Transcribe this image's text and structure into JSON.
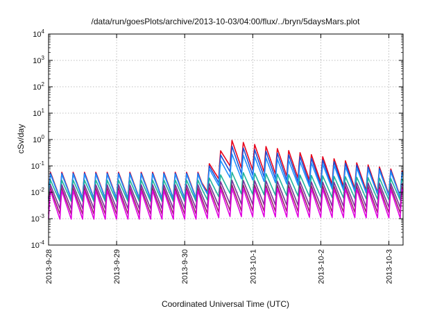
{
  "chart_data": {
    "type": "line",
    "title": "/data/run/goesPlots/archive/2013-10-03/04:00/flux/../bryn/5daysMars.plot",
    "xlabel": "Coordinated Universal Time (UTC)",
    "ylabel": "cSv/day",
    "y_scale": "log",
    "ylim": [
      0.0001,
      10000
    ],
    "y_ticks": [
      {
        "base": "10",
        "exp": "-4"
      },
      {
        "base": "10",
        "exp": "-3"
      },
      {
        "base": "10",
        "exp": "-2"
      },
      {
        "base": "10",
        "exp": "-1"
      },
      {
        "base": "10",
        "exp": "0"
      },
      {
        "base": "10",
        "exp": "1"
      },
      {
        "base": "10",
        "exp": "2"
      },
      {
        "base": "10",
        "exp": "3"
      },
      {
        "base": "10",
        "exp": "4"
      }
    ],
    "xlim": [
      "2013-09-28",
      "2013-10-03T05:00"
    ],
    "x_ticks": [
      "2013-9-28",
      "2013-9-29",
      "2013-9-30",
      "2013-10-1",
      "2013-10-2",
      "2013-10-3"
    ],
    "grid": true,
    "legend": "none",
    "series_colors": [
      "#e8001a",
      "#1a4fd6",
      "#1e90ff",
      "#1fb39a",
      "#7a2f9a",
      "#9a1f6a",
      "#e000e0"
    ],
    "series_profile": [
      {
        "color": "#e8001a",
        "pre_event_peak": 0.06,
        "event_peak": 1.0,
        "trough_ratio": 0.1
      },
      {
        "color": "#1a4fd6",
        "pre_event_peak": 0.055,
        "event_peak": 0.6,
        "trough_ratio": 0.1
      },
      {
        "color": "#1e90ff",
        "pre_event_peak": 0.05,
        "event_peak": 0.3,
        "trough_ratio": 0.12
      },
      {
        "color": "#1fb39a",
        "pre_event_peak": 0.03,
        "event_peak": 0.06,
        "trough_ratio": 0.15
      },
      {
        "color": "#7a2f9a",
        "pre_event_peak": 0.02,
        "event_peak": 0.03,
        "trough_ratio": 0.12
      },
      {
        "color": "#9a1f6a",
        "pre_event_peak": 0.015,
        "event_peak": 0.02,
        "trough_ratio": 0.1
      },
      {
        "color": "#e000e0",
        "pre_event_peak": 0.012,
        "event_peak": 0.015,
        "trough_ratio": 0.08
      }
    ],
    "sawtooth_period_hours": 4,
    "event_onset": "2013-09-30T06:00",
    "event_peak_time": "2013-09-30T16:00",
    "event_decay_to_pre_level": "2013-10-03T05:00"
  }
}
